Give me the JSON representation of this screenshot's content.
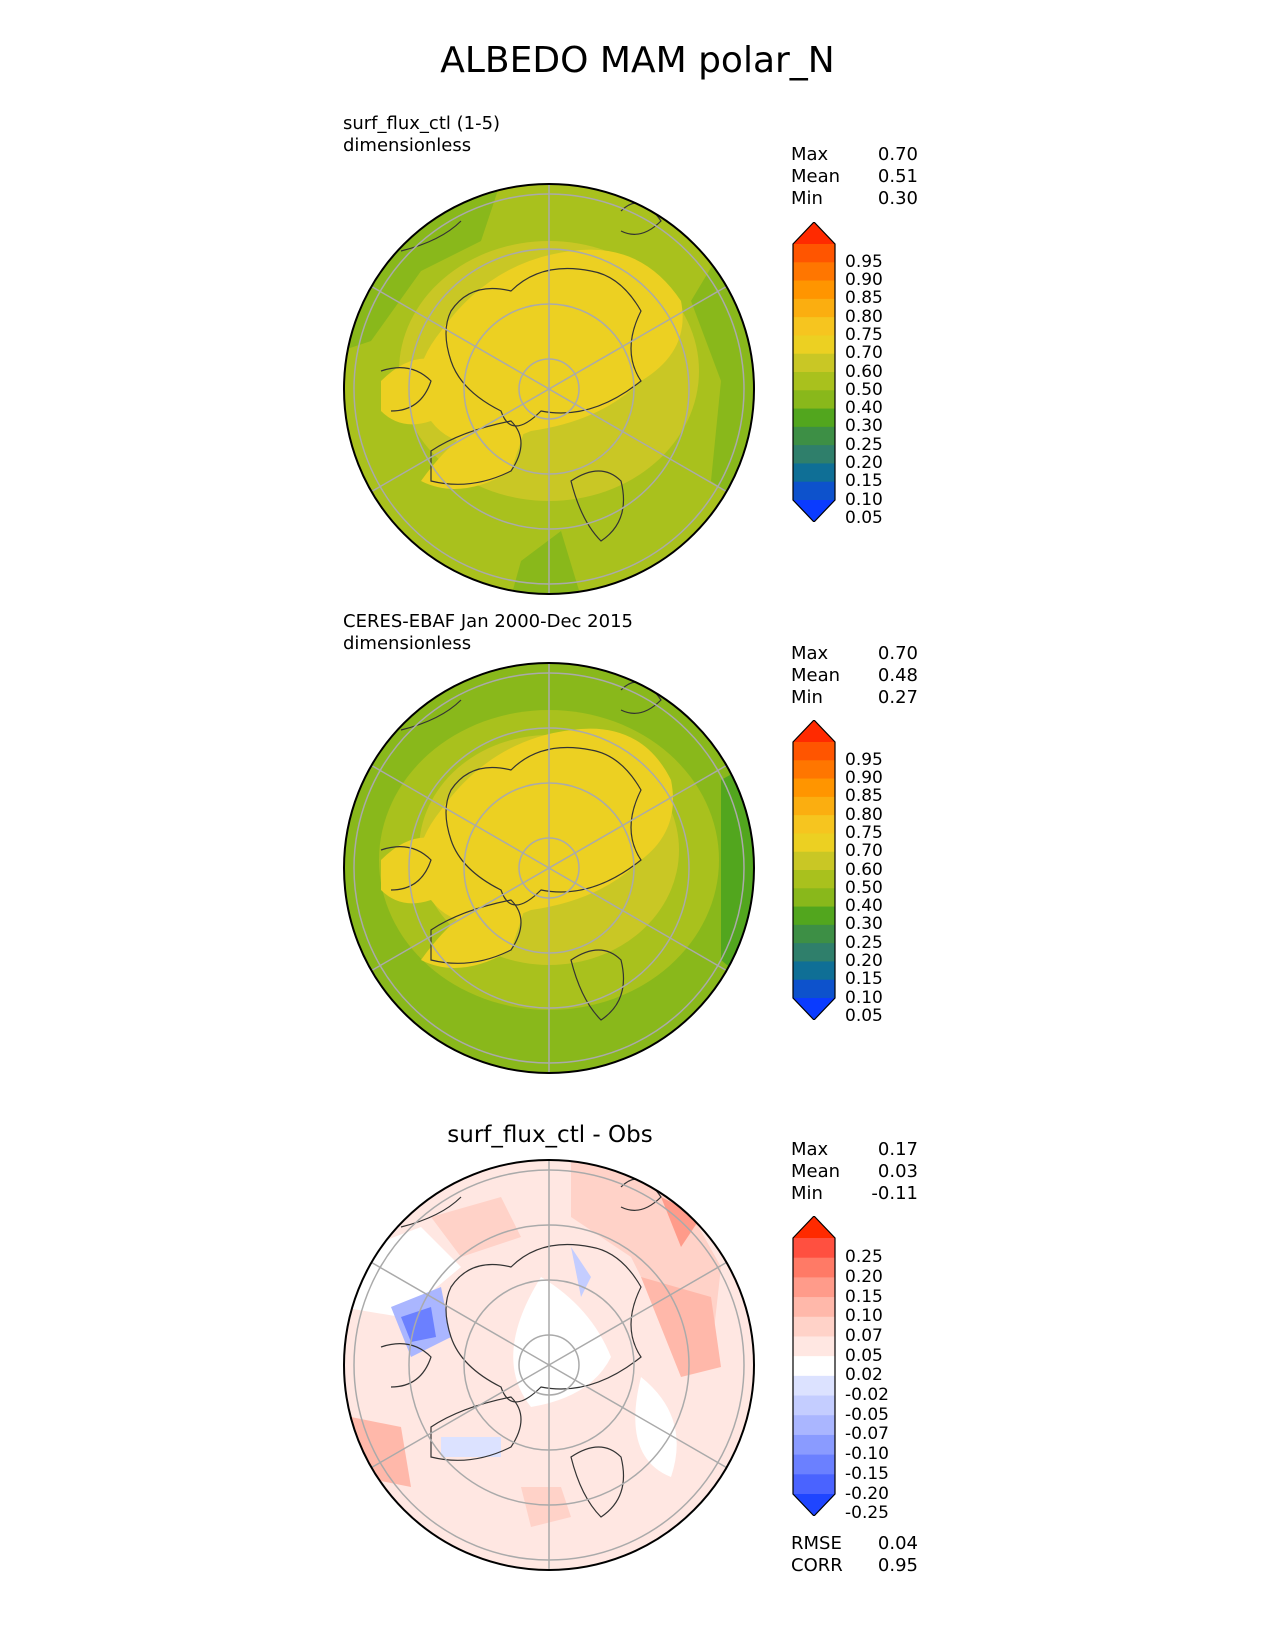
{
  "title": "ALBEDO MAM polar_N",
  "panels": [
    {
      "label_line1": "surf_flux_ctl (1-5)",
      "label_line2": "dimensionless",
      "stats": {
        "max_label": "Max",
        "max": "0.70",
        "mean_label": "Mean",
        "mean": "0.51",
        "min_label": "Min",
        "min": "0.30"
      },
      "colorbar": {
        "ticks": [
          "0.95",
          "0.90",
          "0.85",
          "0.80",
          "0.75",
          "0.70",
          "0.60",
          "0.50",
          "0.40",
          "0.30",
          "0.25",
          "0.20",
          "0.15",
          "0.10",
          "0.05"
        ],
        "colors": [
          "#ff2a00",
          "#ff5500",
          "#ff7600",
          "#ff9500",
          "#fbae10",
          "#f6c51f",
          "#ecd022",
          "#c9c725",
          "#a9c11d",
          "#89b81b",
          "#52a61e",
          "#3d8f45",
          "#2f7f6b",
          "#0f6f96",
          "#0d52cc",
          "#0a3bff"
        ]
      }
    },
    {
      "label_line1": "CERES-EBAF Jan 2000-Dec 2015",
      "label_line2": "dimensionless",
      "stats": {
        "max_label": "Max",
        "max": "0.70",
        "mean_label": "Mean",
        "mean": "0.48",
        "min_label": "Min",
        "min": "0.27"
      },
      "colorbar": {
        "ticks": [
          "0.95",
          "0.90",
          "0.85",
          "0.80",
          "0.75",
          "0.70",
          "0.60",
          "0.50",
          "0.40",
          "0.30",
          "0.25",
          "0.20",
          "0.15",
          "0.10",
          "0.05"
        ],
        "colors": [
          "#ff2a00",
          "#ff5500",
          "#ff7600",
          "#ff9500",
          "#fbae10",
          "#f6c51f",
          "#ecd022",
          "#c9c725",
          "#a9c11d",
          "#89b81b",
          "#52a61e",
          "#3d8f45",
          "#2f7f6b",
          "#0f6f96",
          "#0d52cc",
          "#0a3bff"
        ]
      }
    },
    {
      "title": "surf_flux_ctl - Obs",
      "stats": {
        "max_label": "Max",
        "max": "0.17",
        "mean_label": "Mean",
        "mean": "0.03",
        "min_label": "Min",
        "min": "-0.11"
      },
      "extra": {
        "rmse_label": "RMSE",
        "rmse": "0.04",
        "corr_label": "CORR",
        "corr": "0.95"
      },
      "colorbar": {
        "ticks": [
          "0.25",
          "0.20",
          "0.15",
          "0.10",
          "0.07",
          "0.05",
          "0.02",
          "-0.02",
          "-0.05",
          "-0.07",
          "-0.10",
          "-0.15",
          "-0.20",
          "-0.25"
        ],
        "colors": [
          "#ff2a00",
          "#ff5040",
          "#ff7a66",
          "#ff9b8a",
          "#ffb8aa",
          "#ffd2c8",
          "#ffe7e2",
          "#ffffff",
          "#dce2ff",
          "#c4cdff",
          "#aab6ff",
          "#8a9bff",
          "#6b80ff",
          "#4a63ff",
          "#1f45ff"
        ]
      }
    }
  ]
}
